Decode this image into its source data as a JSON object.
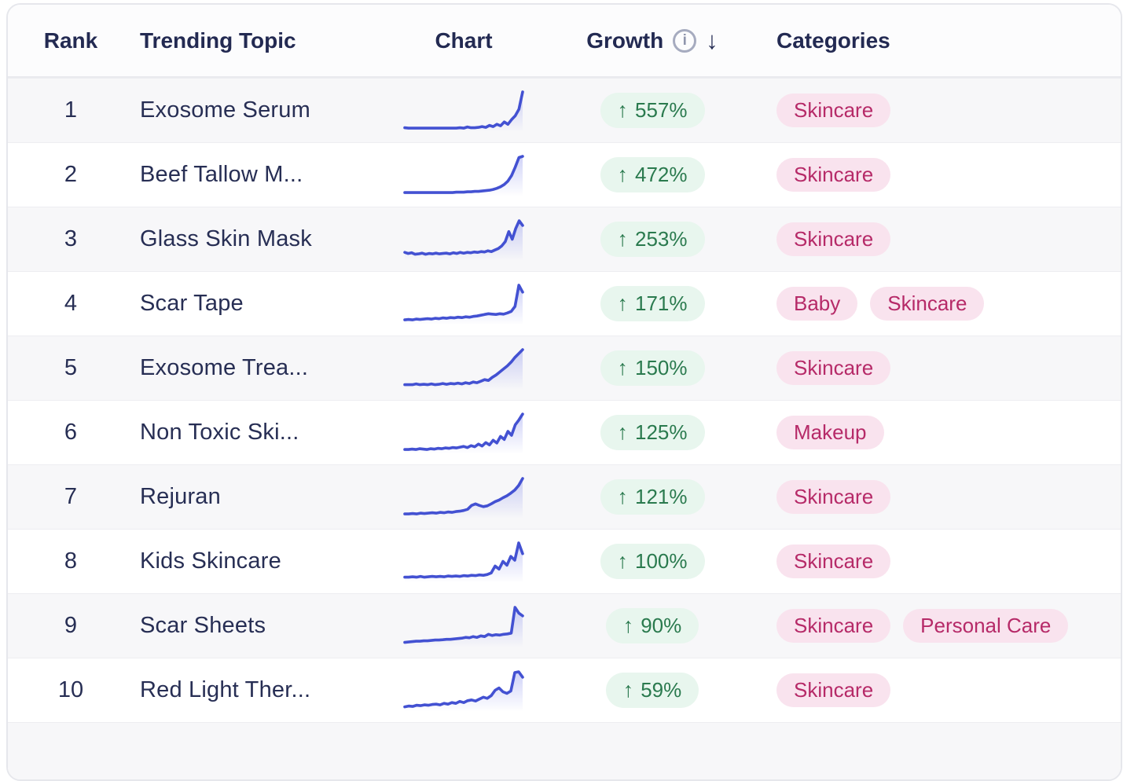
{
  "table": {
    "headers": {
      "rank": "Rank",
      "topic": "Trending Topic",
      "chart": "Chart",
      "growth": "Growth",
      "categories": "Categories"
    },
    "rows": [
      {
        "rank": "1",
        "topic": "Exosome Serum",
        "growth": "557%",
        "categories": [
          "Skincare"
        ],
        "spark": [
          0.07,
          0.06,
          0.06,
          0.06,
          0.06,
          0.06,
          0.06,
          0.06,
          0.06,
          0.06,
          0.06,
          0.06,
          0.06,
          0.06,
          0.06,
          0.07,
          0.06,
          0.09,
          0.07,
          0.07,
          0.08,
          0.1,
          0.08,
          0.13,
          0.1,
          0.16,
          0.12,
          0.22,
          0.16,
          0.28,
          0.38,
          0.55,
          1.0
        ]
      },
      {
        "rank": "2",
        "topic": "Beef Tallow M...",
        "growth": "472%",
        "categories": [
          "Skincare"
        ],
        "spark": [
          0.06,
          0.06,
          0.06,
          0.06,
          0.06,
          0.06,
          0.06,
          0.06,
          0.06,
          0.06,
          0.06,
          0.06,
          0.06,
          0.06,
          0.07,
          0.07,
          0.07,
          0.08,
          0.08,
          0.09,
          0.09,
          0.1,
          0.11,
          0.12,
          0.14,
          0.17,
          0.21,
          0.27,
          0.36,
          0.5,
          0.72,
          0.97,
          1.0
        ]
      },
      {
        "rank": "3",
        "topic": "Glass Skin Mask",
        "growth": "253%",
        "categories": [
          "Skincare"
        ],
        "spark": [
          0.18,
          0.15,
          0.17,
          0.13,
          0.14,
          0.16,
          0.13,
          0.15,
          0.14,
          0.16,
          0.14,
          0.15,
          0.16,
          0.14,
          0.17,
          0.15,
          0.18,
          0.16,
          0.18,
          0.17,
          0.19,
          0.18,
          0.2,
          0.19,
          0.22,
          0.2,
          0.24,
          0.28,
          0.35,
          0.46,
          0.72,
          0.52,
          0.8,
          1.0,
          0.88
        ]
      },
      {
        "rank": "4",
        "topic": "Scar Tape",
        "growth": "171%",
        "categories": [
          "Baby",
          "Skincare"
        ],
        "spark": [
          0.1,
          0.11,
          0.1,
          0.12,
          0.11,
          0.12,
          0.13,
          0.12,
          0.14,
          0.13,
          0.15,
          0.14,
          0.16,
          0.15,
          0.17,
          0.16,
          0.18,
          0.17,
          0.19,
          0.2,
          0.22,
          0.24,
          0.26,
          0.25,
          0.24,
          0.26,
          0.25,
          0.28,
          0.32,
          0.45,
          1.0,
          0.82
        ]
      },
      {
        "rank": "5",
        "topic": "Exosome Trea...",
        "growth": "150%",
        "categories": [
          "Skincare"
        ],
        "spark": [
          0.09,
          0.09,
          0.09,
          0.11,
          0.09,
          0.1,
          0.09,
          0.11,
          0.09,
          0.1,
          0.12,
          0.1,
          0.12,
          0.11,
          0.13,
          0.11,
          0.14,
          0.12,
          0.16,
          0.14,
          0.18,
          0.22,
          0.2,
          0.28,
          0.34,
          0.42,
          0.5,
          0.58,
          0.68,
          0.8,
          0.9,
          1.0
        ]
      },
      {
        "rank": "6",
        "topic": "Non Toxic Ski...",
        "growth": "125%",
        "categories": [
          "Makeup"
        ],
        "spark": [
          0.08,
          0.08,
          0.09,
          0.08,
          0.1,
          0.09,
          0.08,
          0.1,
          0.09,
          0.11,
          0.1,
          0.12,
          0.11,
          0.13,
          0.12,
          0.14,
          0.16,
          0.13,
          0.18,
          0.15,
          0.22,
          0.17,
          0.26,
          0.2,
          0.32,
          0.25,
          0.42,
          0.34,
          0.55,
          0.45,
          0.72,
          0.85,
          1.0
        ]
      },
      {
        "rank": "7",
        "topic": "Rejuran",
        "growth": "121%",
        "categories": [
          "Skincare"
        ],
        "spark": [
          0.08,
          0.08,
          0.09,
          0.08,
          0.1,
          0.09,
          0.1,
          0.11,
          0.1,
          0.12,
          0.11,
          0.13,
          0.12,
          0.14,
          0.15,
          0.17,
          0.2,
          0.3,
          0.34,
          0.3,
          0.27,
          0.29,
          0.34,
          0.4,
          0.44,
          0.5,
          0.55,
          0.62,
          0.7,
          0.82,
          1.0
        ]
      },
      {
        "rank": "8",
        "topic": "Kids Skincare",
        "growth": "100%",
        "categories": [
          "Skincare"
        ],
        "spark": [
          0.11,
          0.11,
          0.12,
          0.11,
          0.13,
          0.11,
          0.12,
          0.13,
          0.12,
          0.13,
          0.12,
          0.14,
          0.13,
          0.14,
          0.13,
          0.15,
          0.14,
          0.16,
          0.15,
          0.17,
          0.16,
          0.18,
          0.22,
          0.4,
          0.32,
          0.52,
          0.42,
          0.65,
          0.55,
          1.0,
          0.72
        ]
      },
      {
        "rank": "9",
        "topic": "Scar Sheets",
        "growth": "90%",
        "categories": [
          "Skincare",
          "Personal Care"
        ],
        "spark": [
          0.09,
          0.1,
          0.11,
          0.12,
          0.12,
          0.13,
          0.13,
          0.14,
          0.15,
          0.15,
          0.16,
          0.17,
          0.17,
          0.18,
          0.19,
          0.2,
          0.22,
          0.21,
          0.24,
          0.22,
          0.26,
          0.24,
          0.3,
          0.27,
          0.29,
          0.28,
          0.3,
          0.31,
          0.33,
          1.0,
          0.85,
          0.78
        ]
      },
      {
        "rank": "10",
        "topic": "Red Light Ther...",
        "growth": "59%",
        "categories": [
          "Skincare"
        ],
        "spark": [
          0.09,
          0.11,
          0.1,
          0.13,
          0.12,
          0.14,
          0.13,
          0.15,
          0.16,
          0.14,
          0.18,
          0.16,
          0.2,
          0.18,
          0.23,
          0.2,
          0.25,
          0.27,
          0.24,
          0.29,
          0.34,
          0.31,
          0.38,
          0.52,
          0.58,
          0.48,
          0.44,
          0.5,
          0.98,
          1.0,
          0.86
        ]
      }
    ]
  },
  "icons": {
    "info_glyph": "i",
    "sort_desc_glyph": "↓",
    "growth_up_glyph": "↑"
  },
  "colors": {
    "text_navy": "#272e54",
    "spark_line": "#4351d2",
    "spark_fill": "#656ee7",
    "growth_badge_bg": "#e8f6ee",
    "growth_badge_text": "#2a7a4e",
    "category_chip_bg": "#f9e3ee",
    "category_chip_text": "#b62a68",
    "row_alt_bg": "#f7f7f9",
    "card_border": "#e6e7ec"
  }
}
